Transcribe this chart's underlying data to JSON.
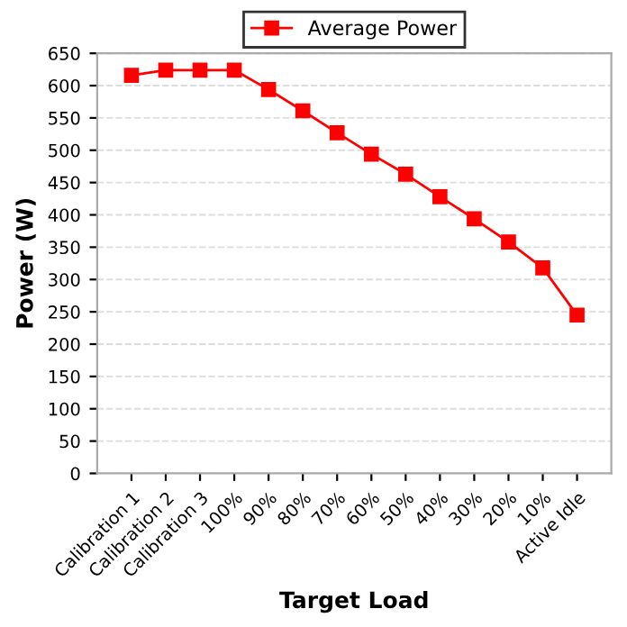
{
  "chart_data": {
    "type": "line",
    "xlabel": "Target Load",
    "ylabel": "Power (W)",
    "categories": [
      "Calibration 1",
      "Calibration 2",
      "Calibration 3",
      "100%",
      "90%",
      "80%",
      "70%",
      "60%",
      "50%",
      "40%",
      "30%",
      "20%",
      "10%",
      "Active Idle"
    ],
    "series": [
      {
        "name": "Average Power",
        "color": "#ff0000",
        "values": [
          616,
          624,
          624,
          624,
          594,
          561,
          527,
          494,
          463,
          428,
          394,
          358,
          318,
          245
        ]
      }
    ],
    "ylim": [
      0,
      650
    ],
    "yticks": [
      0,
      50,
      100,
      150,
      200,
      250,
      300,
      350,
      400,
      450,
      500,
      550,
      600,
      650
    ],
    "grid": "y",
    "legend": "top",
    "marker": "square",
    "line_style": "solid"
  }
}
